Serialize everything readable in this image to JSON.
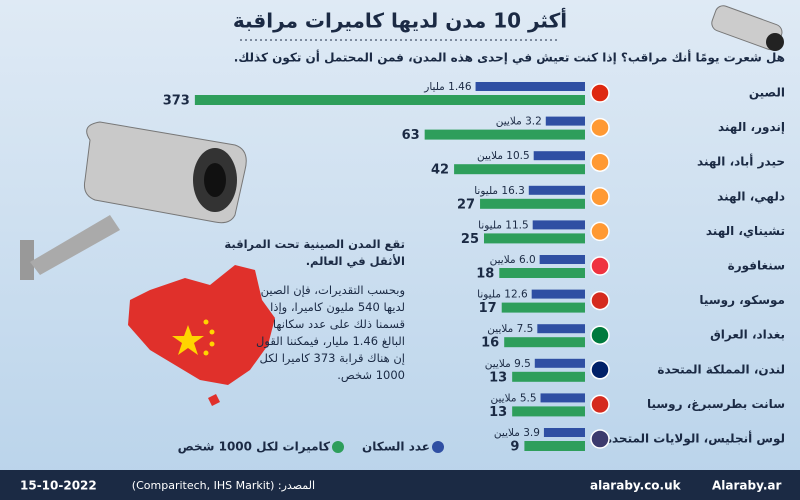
{
  "chart_data": {
    "type": "bar",
    "title": "أكثر 10 مدن لديها كاميرات مراقبة",
    "subtitle": "هل شعرت يومًا أنك مراقب؟ إذا كنت تعيش في إحدى هذه المدن، فمن المحتمل أن تكون كذلك.",
    "categories": [
      "الصين",
      "إندور، الهند",
      "حيدر أباد، الهند",
      "دلهي، الهند",
      "تشيناي، الهند",
      "سنغافورة",
      "موسكو، روسيا",
      "بغداد، العراق",
      "لندن، المملكة المتحدة",
      "سانت بطرسبرغ، روسيا",
      "لوس أنجليس، الولايات المتحدة"
    ],
    "series": [
      {
        "name": "عدد السكان",
        "color": "#2f4fa3",
        "values": [
          1460,
          3.2,
          10.5,
          16.3,
          11.5,
          6.0,
          12.6,
          7.5,
          9.5,
          5.5,
          3.9
        ],
        "value_labels": [
          "1.46 مليار",
          "3.2 ملايين",
          "10.5 ملايين",
          "16.3 مليونا",
          "11.5 مليونا",
          "6.0 ملايين",
          "12.6 مليونا",
          "7.5 ملايين",
          "9.5 ملايين",
          "5.5 ملايين",
          "3.9 ملايين"
        ]
      },
      {
        "name": "كاميرات لكل 1000 شخص",
        "color": "#2e9e5b",
        "values": [
          373,
          63,
          42,
          27,
          25,
          18,
          17,
          16,
          13,
          13,
          9
        ]
      }
    ],
    "notes": [
      "تقع المدن الصينية تحت المراقبة الأثقل في العالم.",
      "وبحسب التقديرات، فإن الصين لديها 540 مليون كاميرا، وإذا قسمنا ذلك على عدد سكانها البالغ 1.46 مليار، فيمكننا القول إن هناك قرابة 373 كاميرا لكل 1000 شخص."
    ],
    "footer": {
      "date": "15-10-2022",
      "source": "المصدر: (Comparitech, IHS Markit)",
      "site": "alaraby.co.uk",
      "social": "Alaraby.ar"
    }
  }
}
